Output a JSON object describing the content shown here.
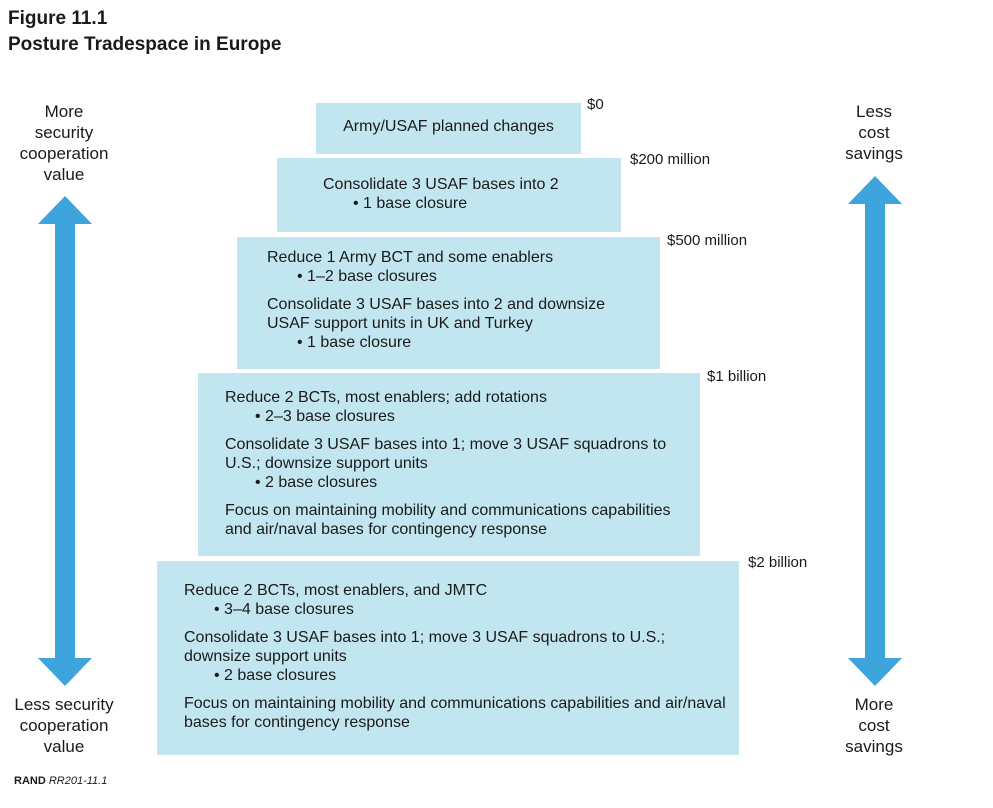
{
  "figure": {
    "number": "Figure 11.1",
    "title": "Posture Tradespace in Europe"
  },
  "left_axis": {
    "top_label": [
      "More",
      "security",
      "cooperation",
      "value"
    ],
    "bottom_label": [
      "Less security",
      "cooperation",
      "value"
    ],
    "arrow_color": "#3da4dc"
  },
  "right_axis": {
    "top_label": [
      "Less",
      "cost",
      "savings"
    ],
    "bottom_label": [
      "More",
      "cost",
      "savings"
    ],
    "arrow_color": "#3da4dc"
  },
  "tiers": [
    {
      "cost": "$0",
      "lines": [
        {
          "text": "Army/USAF planned changes",
          "bullet": false
        }
      ]
    },
    {
      "cost": "$200 million",
      "lines": [
        {
          "text": "Consolidate 3 USAF bases into 2",
          "bullet": false
        },
        {
          "text": "1 base closure",
          "bullet": true
        }
      ]
    },
    {
      "cost": "$500 million",
      "lines": [
        {
          "text": "Reduce 1 Army BCT and some enablers",
          "bullet": false
        },
        {
          "text": "1–2 base closures",
          "bullet": true
        },
        {
          "text": "Consolidate 3 USAF bases into 2 and downsize USAF support units in UK and Turkey",
          "bullet": false
        },
        {
          "text": "1 base closure",
          "bullet": true
        }
      ]
    },
    {
      "cost": "$1 billion",
      "lines": [
        {
          "text": "Reduce 2 BCTs, most enablers; add rotations",
          "bullet": false
        },
        {
          "text": "2–3 base closures",
          "bullet": true
        },
        {
          "text": "Consolidate 3 USAF bases into 1; move 3 USAF squadrons to U.S.; downsize support units",
          "bullet": false
        },
        {
          "text": "2 base closures",
          "bullet": true
        },
        {
          "text": "Focus on maintaining mobility and communications capabilities and air/naval bases for contingency response",
          "bullet": false
        }
      ]
    },
    {
      "cost": "$2 billion",
      "lines": [
        {
          "text": "Reduce 2 BCTs, most enablers, and JMTC",
          "bullet": false
        },
        {
          "text": "3–4 base closures",
          "bullet": true
        },
        {
          "text": "Consolidate 3 USAF bases into 1; move 3 USAF squadrons to U.S.; downsize support units",
          "bullet": false
        },
        {
          "text": "2 base closures",
          "bullet": true
        },
        {
          "text": "Focus on maintaining mobility and communications capabilities and air/naval bases for contingency response",
          "bullet": false
        }
      ]
    }
  ],
  "tier_fill_color": "#c2e6f0",
  "credit": {
    "org": "RAND",
    "id": "RR201-11.1"
  }
}
